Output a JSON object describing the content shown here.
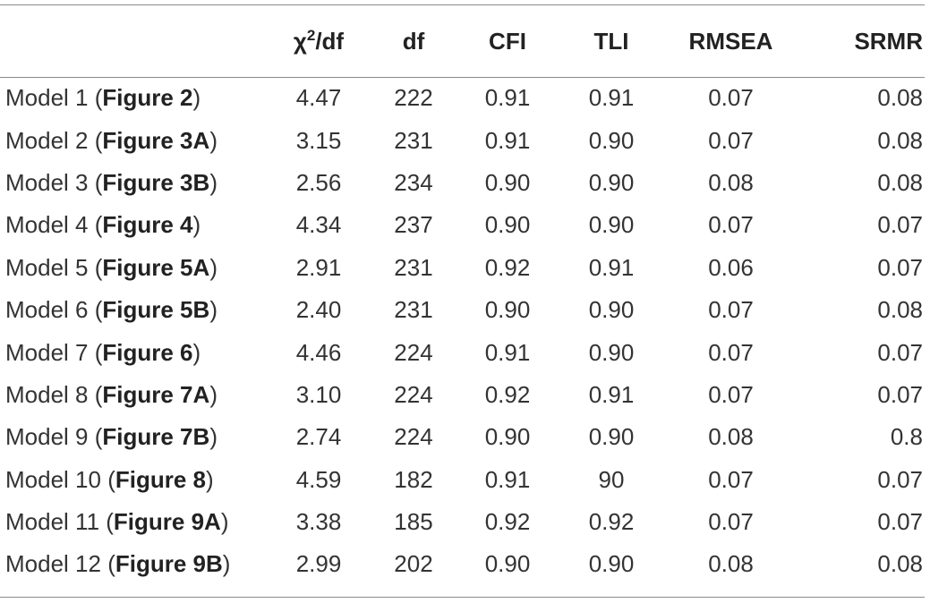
{
  "table": {
    "headers": {
      "chi_base": "χ",
      "chi_sup": "2",
      "chi_rest": "/df",
      "df": "df",
      "cfi": "CFI",
      "tli": "TLI",
      "rmsea": "RMSEA",
      "srmr": "SRMR"
    },
    "rows": [
      {
        "model": "Model 1",
        "figure": "Figure 2",
        "chi": "4.47",
        "df": "222",
        "cfi": "0.91",
        "tli": "0.91",
        "rmsea": "0.07",
        "srmr": "0.08"
      },
      {
        "model": "Model 2",
        "figure": "Figure 3A",
        "chi": "3.15",
        "df": "231",
        "cfi": "0.91",
        "tli": "0.90",
        "rmsea": "0.07",
        "srmr": "0.08"
      },
      {
        "model": "Model 3",
        "figure": "Figure 3B",
        "chi": "2.56",
        "df": "234",
        "cfi": "0.90",
        "tli": "0.90",
        "rmsea": "0.08",
        "srmr": "0.08"
      },
      {
        "model": "Model 4",
        "figure": "Figure 4",
        "chi": "4.34",
        "df": "237",
        "cfi": "0.90",
        "tli": "0.90",
        "rmsea": "0.07",
        "srmr": "0.07"
      },
      {
        "model": "Model 5",
        "figure": "Figure 5A",
        "chi": "2.91",
        "df": "231",
        "cfi": "0.92",
        "tli": "0.91",
        "rmsea": "0.06",
        "srmr": "0.07"
      },
      {
        "model": "Model 6",
        "figure": "Figure 5B",
        "chi": "2.40",
        "df": "231",
        "cfi": "0.90",
        "tli": "0.90",
        "rmsea": "0.07",
        "srmr": "0.08"
      },
      {
        "model": "Model 7",
        "figure": "Figure 6",
        "chi": "4.46",
        "df": "224",
        "cfi": "0.91",
        "tli": "0.90",
        "rmsea": "0.07",
        "srmr": "0.07"
      },
      {
        "model": "Model 8",
        "figure": "Figure 7A",
        "chi": "3.10",
        "df": "224",
        "cfi": "0.92",
        "tli": "0.91",
        "rmsea": "0.07",
        "srmr": "0.07"
      },
      {
        "model": "Model 9",
        "figure": "Figure 7B",
        "chi": "2.74",
        "df": "224",
        "cfi": "0.90",
        "tli": "0.90",
        "rmsea": "0.08",
        "srmr": "0.8"
      },
      {
        "model": "Model 10",
        "figure": "Figure 8",
        "chi": "4.59",
        "df": "182",
        "cfi": "0.91",
        "tli": "90",
        "rmsea": "0.07",
        "srmr": "0.07"
      },
      {
        "model": "Model 11",
        "figure": "Figure 9A",
        "chi": "3.38",
        "df": "185",
        "cfi": "0.92",
        "tli": "0.92",
        "rmsea": "0.07",
        "srmr": "0.07"
      },
      {
        "model": "Model 12",
        "figure": "Figure 9B",
        "chi": "2.99",
        "df": "202",
        "cfi": "0.90",
        "tli": "0.90",
        "rmsea": "0.08",
        "srmr": "0.08"
      }
    ]
  }
}
